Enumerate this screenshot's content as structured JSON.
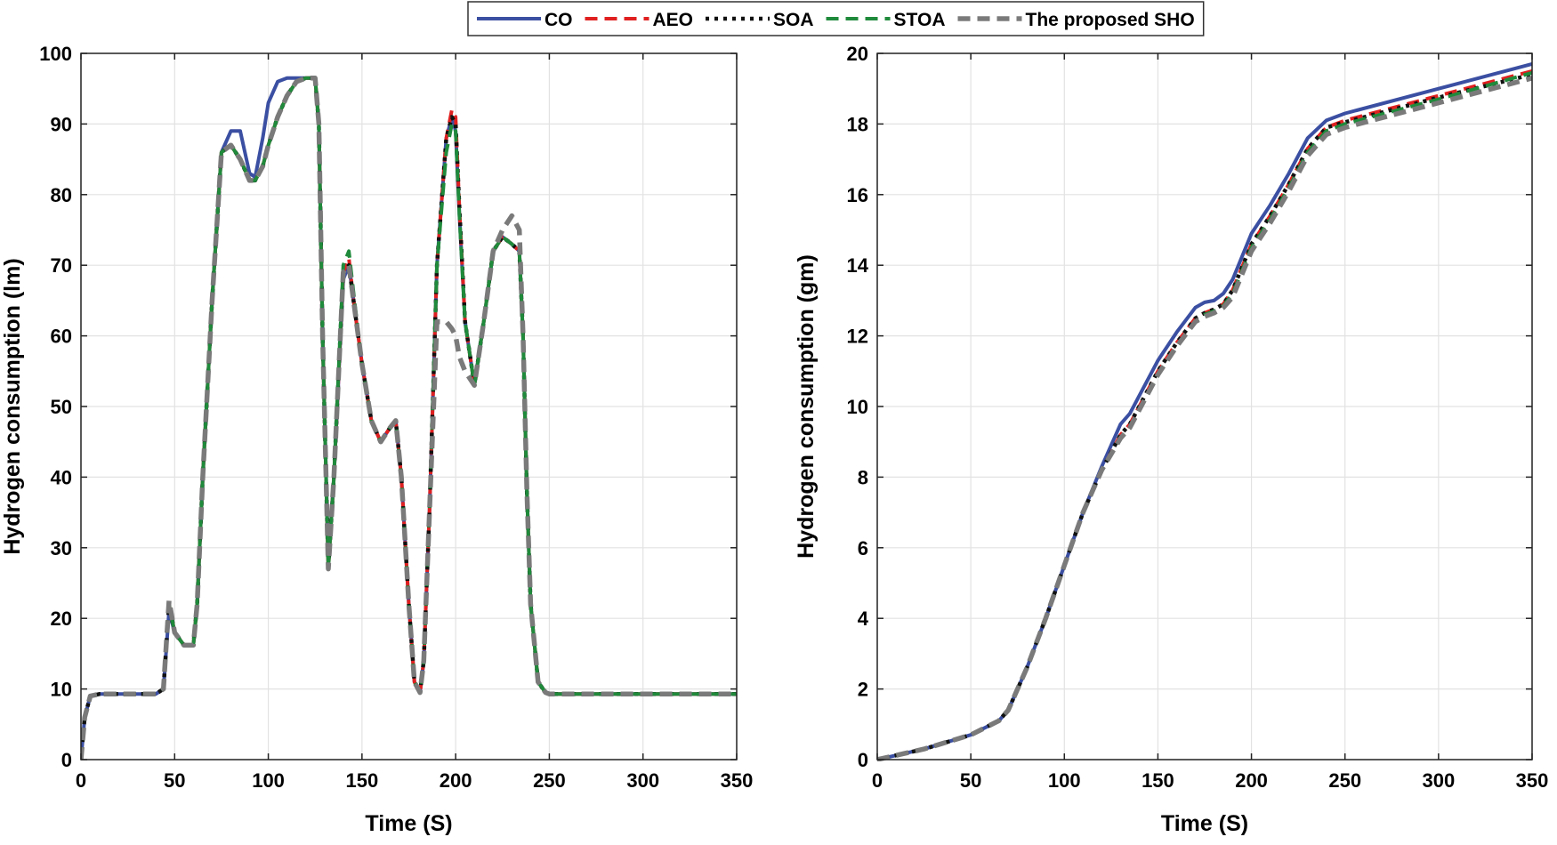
{
  "legend": [
    {
      "name": "CO",
      "color": "#3b4fa2",
      "style": "solid"
    },
    {
      "name": "AEO",
      "color": "#e02020",
      "style": "dash"
    },
    {
      "name": "SOA",
      "color": "#111111",
      "style": "dot"
    },
    {
      "name": "STOA",
      "color": "#1f8a3b",
      "style": "dash"
    },
    {
      "name": "The proposed SHO",
      "color": "#7a7a7a",
      "style": "dash"
    }
  ],
  "chart_data": [
    {
      "type": "line",
      "xlabel": "Time (S)",
      "ylabel": "Hydrogen consumption (lm)",
      "xlim": [
        0,
        350
      ],
      "ylim": [
        0,
        100
      ],
      "xticks": [
        0,
        50,
        100,
        150,
        200,
        250,
        300,
        350
      ],
      "yticks": [
        0,
        10,
        20,
        30,
        40,
        50,
        60,
        70,
        80,
        90,
        100
      ],
      "grid": true,
      "series": [
        {
          "name": "CO",
          "x": [
            0,
            2,
            5,
            10,
            20,
            30,
            40,
            44,
            47,
            50,
            55,
            60,
            62,
            65,
            70,
            75,
            80,
            85,
            90,
            93,
            97,
            100,
            105,
            110,
            115,
            120,
            125,
            127,
            129,
            132,
            135,
            140,
            143,
            146,
            150,
            155,
            160,
            165,
            168,
            171,
            175,
            178,
            181,
            183,
            186,
            190,
            195,
            198,
            200,
            202,
            205,
            210,
            215,
            220,
            225,
            230,
            234,
            236,
            238,
            240,
            244,
            248,
            250,
            260,
            300,
            350
          ],
          "y": [
            0,
            6,
            9,
            9.3,
            9.3,
            9.3,
            9.3,
            10,
            21,
            18,
            16.2,
            16.2,
            22,
            40,
            65,
            86,
            89,
            89,
            83,
            82.5,
            88,
            93,
            96,
            96.5,
            96.5,
            96.5,
            96.5,
            90,
            60,
            28,
            40,
            68,
            70,
            64,
            56,
            48,
            45,
            47,
            48,
            40,
            22,
            11,
            9.5,
            14,
            35,
            70,
            88,
            91,
            89,
            77,
            62,
            53,
            62,
            72,
            74,
            73,
            72,
            60,
            38,
            22,
            11,
            9.5,
            9.3,
            9.3,
            9.3,
            9.3
          ]
        },
        {
          "name": "AEO",
          "x": [
            0,
            2,
            5,
            10,
            20,
            30,
            40,
            44,
            47,
            50,
            55,
            60,
            62,
            65,
            70,
            75,
            80,
            85,
            90,
            93,
            97,
            100,
            105,
            110,
            115,
            120,
            125,
            127,
            129,
            132,
            135,
            140,
            143,
            146,
            150,
            155,
            160,
            165,
            168,
            171,
            175,
            178,
            181,
            183,
            186,
            190,
            195,
            198,
            200,
            202,
            205,
            210,
            215,
            220,
            225,
            230,
            234,
            236,
            238,
            240,
            244,
            248,
            250,
            260,
            300,
            350
          ],
          "y": [
            0,
            6,
            9,
            9.3,
            9.3,
            9.3,
            9.3,
            10,
            22,
            18,
            16.2,
            16.2,
            22,
            40,
            65,
            86,
            87,
            85,
            82,
            82,
            84,
            87,
            91,
            94,
            96,
            96.5,
            96.5,
            90,
            60,
            27,
            40,
            69,
            71,
            64,
            56,
            48,
            45,
            47,
            48,
            40,
            22,
            11,
            9.5,
            14,
            35,
            70,
            88,
            92,
            91,
            78,
            62,
            53,
            62,
            72,
            74,
            73,
            72,
            60,
            38,
            22,
            11,
            9.5,
            9.3,
            9.3,
            9.3,
            9.3
          ]
        },
        {
          "name": "SOA",
          "x": [
            0,
            2,
            5,
            10,
            20,
            30,
            40,
            44,
            47,
            50,
            55,
            60,
            62,
            65,
            70,
            75,
            80,
            85,
            90,
            93,
            97,
            100,
            105,
            110,
            115,
            120,
            125,
            127,
            129,
            132,
            135,
            140,
            143,
            146,
            150,
            155,
            160,
            165,
            168,
            171,
            175,
            178,
            181,
            183,
            186,
            190,
            195,
            198,
            200,
            202,
            205,
            210,
            215,
            220,
            225,
            230,
            234,
            236,
            238,
            240,
            244,
            248,
            250,
            260,
            300,
            350
          ],
          "y": [
            0,
            6,
            9,
            9.3,
            9.3,
            9.3,
            9.3,
            10,
            22,
            18,
            16.2,
            16.2,
            22,
            40,
            65,
            86,
            87,
            85,
            82,
            82,
            84,
            87,
            91,
            94,
            96,
            96.5,
            96.5,
            90,
            60,
            27,
            40,
            69,
            70,
            64,
            56,
            48,
            45,
            47,
            48,
            40,
            22,
            11,
            9.5,
            14,
            35,
            70,
            88,
            91,
            90,
            78,
            62,
            53,
            62,
            72,
            74,
            73,
            72,
            60,
            38,
            22,
            11,
            9.5,
            9.3,
            9.3,
            9.3,
            9.3
          ]
        },
        {
          "name": "STOA",
          "x": [
            0,
            2,
            5,
            10,
            20,
            30,
            40,
            44,
            47,
            50,
            55,
            60,
            62,
            65,
            70,
            75,
            80,
            85,
            90,
            93,
            97,
            100,
            105,
            110,
            115,
            120,
            125,
            127,
            129,
            132,
            135,
            140,
            143,
            146,
            150,
            155,
            160,
            165,
            168,
            171,
            175,
            178,
            181,
            183,
            186,
            190,
            195,
            198,
            200,
            202,
            205,
            210,
            215,
            220,
            225,
            230,
            234,
            236,
            238,
            240,
            244,
            248,
            250,
            260,
            300,
            350
          ],
          "y": [
            0,
            6,
            9,
            9.3,
            9.3,
            9.3,
            9.3,
            10,
            22,
            18,
            16.2,
            16.2,
            22,
            40,
            65,
            86,
            87,
            85,
            82,
            82,
            84,
            87,
            91,
            94,
            96,
            96.5,
            96.5,
            90,
            60,
            27,
            40,
            70,
            72,
            65,
            56,
            48,
            45,
            47,
            48,
            40,
            22,
            11,
            9.5,
            14,
            35,
            70,
            86,
            90,
            89,
            77,
            62,
            53,
            62,
            72,
            74,
            73,
            72,
            60,
            38,
            22,
            11,
            9.5,
            9.3,
            9.3,
            9.3,
            9.3
          ]
        },
        {
          "name": "The proposed SHO",
          "x": [
            0,
            2,
            5,
            10,
            20,
            30,
            40,
            44,
            47,
            50,
            55,
            60,
            62,
            65,
            70,
            75,
            80,
            85,
            90,
            93,
            97,
            100,
            105,
            110,
            115,
            120,
            125,
            127,
            129,
            132,
            135,
            140,
            143,
            146,
            150,
            155,
            160,
            165,
            168,
            171,
            175,
            178,
            181,
            183,
            186,
            190,
            195,
            198,
            200,
            202,
            205,
            210,
            215,
            220,
            225,
            230,
            234,
            236,
            238,
            240,
            244,
            248,
            250,
            260,
            300,
            350
          ],
          "y": [
            0,
            6,
            9,
            9.3,
            9.3,
            9.3,
            9.3,
            10,
            22.5,
            18,
            16.2,
            16.2,
            22,
            40,
            65,
            86,
            87,
            85,
            82,
            82,
            84,
            87,
            91,
            94,
            96,
            96.5,
            96.5,
            90,
            60,
            27,
            40,
            69,
            70,
            64,
            56,
            48,
            45,
            47,
            48,
            40,
            22,
            11,
            9.5,
            14,
            35,
            62,
            62,
            61,
            60,
            57,
            55,
            53,
            62,
            72,
            75,
            77,
            75,
            60,
            38,
            22,
            11,
            9.5,
            9.3,
            9.3,
            9.3,
            9.3
          ]
        }
      ]
    },
    {
      "type": "line",
      "xlabel": "Time (S)",
      "ylabel": "Hydrogen consumption (gm)",
      "xlim": [
        0,
        350
      ],
      "ylim": [
        0,
        20
      ],
      "xticks": [
        0,
        50,
        100,
        150,
        200,
        250,
        300,
        350
      ],
      "yticks": [
        0,
        2,
        4,
        6,
        8,
        10,
        12,
        14,
        16,
        18,
        20
      ],
      "grid": true,
      "series": [
        {
          "name": "CO",
          "x": [
            0,
            25,
            50,
            65,
            70,
            80,
            90,
            100,
            110,
            120,
            130,
            135,
            140,
            150,
            160,
            170,
            175,
            180,
            185,
            190,
            200,
            210,
            220,
            230,
            240,
            250,
            300,
            350
          ],
          "y": [
            0,
            0.3,
            0.7,
            1.1,
            1.4,
            2.6,
            4.0,
            5.5,
            7.0,
            8.3,
            9.5,
            9.8,
            10.3,
            11.3,
            12.1,
            12.8,
            12.95,
            13.0,
            13.2,
            13.6,
            14.9,
            15.7,
            16.6,
            17.6,
            18.1,
            18.3,
            19.0,
            19.7
          ]
        },
        {
          "name": "AEO",
          "x": [
            0,
            25,
            50,
            65,
            70,
            80,
            90,
            100,
            110,
            120,
            130,
            135,
            140,
            150,
            160,
            170,
            175,
            180,
            185,
            190,
            200,
            210,
            220,
            230,
            240,
            250,
            300,
            350
          ],
          "y": [
            0,
            0.3,
            0.7,
            1.1,
            1.4,
            2.6,
            4.0,
            5.5,
            7.0,
            8.2,
            9.2,
            9.5,
            10.0,
            11.0,
            11.8,
            12.5,
            12.65,
            12.75,
            12.9,
            13.3,
            14.6,
            15.4,
            16.3,
            17.3,
            17.9,
            18.1,
            18.8,
            19.5
          ]
        },
        {
          "name": "SOA",
          "x": [
            0,
            25,
            50,
            65,
            70,
            80,
            90,
            100,
            110,
            120,
            130,
            135,
            140,
            150,
            160,
            170,
            175,
            180,
            185,
            190,
            200,
            210,
            220,
            230,
            240,
            250,
            300,
            350
          ],
          "y": [
            0,
            0.3,
            0.7,
            1.1,
            1.4,
            2.6,
            4.0,
            5.5,
            7.0,
            8.2,
            9.2,
            9.5,
            10.0,
            11.0,
            11.8,
            12.5,
            12.65,
            12.75,
            12.9,
            13.3,
            14.6,
            15.4,
            16.3,
            17.3,
            17.9,
            18.05,
            18.75,
            19.4
          ]
        },
        {
          "name": "STOA",
          "x": [
            0,
            25,
            50,
            65,
            70,
            80,
            90,
            100,
            110,
            120,
            130,
            135,
            140,
            150,
            160,
            170,
            175,
            180,
            185,
            190,
            200,
            210,
            220,
            230,
            240,
            250,
            300,
            350
          ],
          "y": [
            0,
            0.3,
            0.7,
            1.1,
            1.4,
            2.6,
            4.0,
            5.5,
            7.0,
            8.2,
            9.1,
            9.4,
            9.9,
            10.9,
            11.7,
            12.4,
            12.6,
            12.7,
            12.85,
            13.2,
            14.5,
            15.3,
            16.2,
            17.2,
            17.8,
            18.0,
            18.7,
            19.45
          ]
        },
        {
          "name": "The proposed SHO",
          "x": [
            0,
            25,
            50,
            65,
            70,
            80,
            90,
            100,
            110,
            120,
            130,
            135,
            140,
            150,
            160,
            170,
            175,
            180,
            185,
            190,
            200,
            210,
            220,
            230,
            240,
            250,
            300,
            350
          ],
          "y": [
            0,
            0.3,
            0.7,
            1.1,
            1.4,
            2.6,
            4.0,
            5.5,
            7.0,
            8.2,
            9.1,
            9.4,
            9.9,
            10.9,
            11.7,
            12.4,
            12.55,
            12.65,
            12.8,
            13.1,
            14.4,
            15.2,
            16.1,
            17.1,
            17.7,
            17.9,
            18.6,
            19.3
          ]
        }
      ]
    }
  ]
}
